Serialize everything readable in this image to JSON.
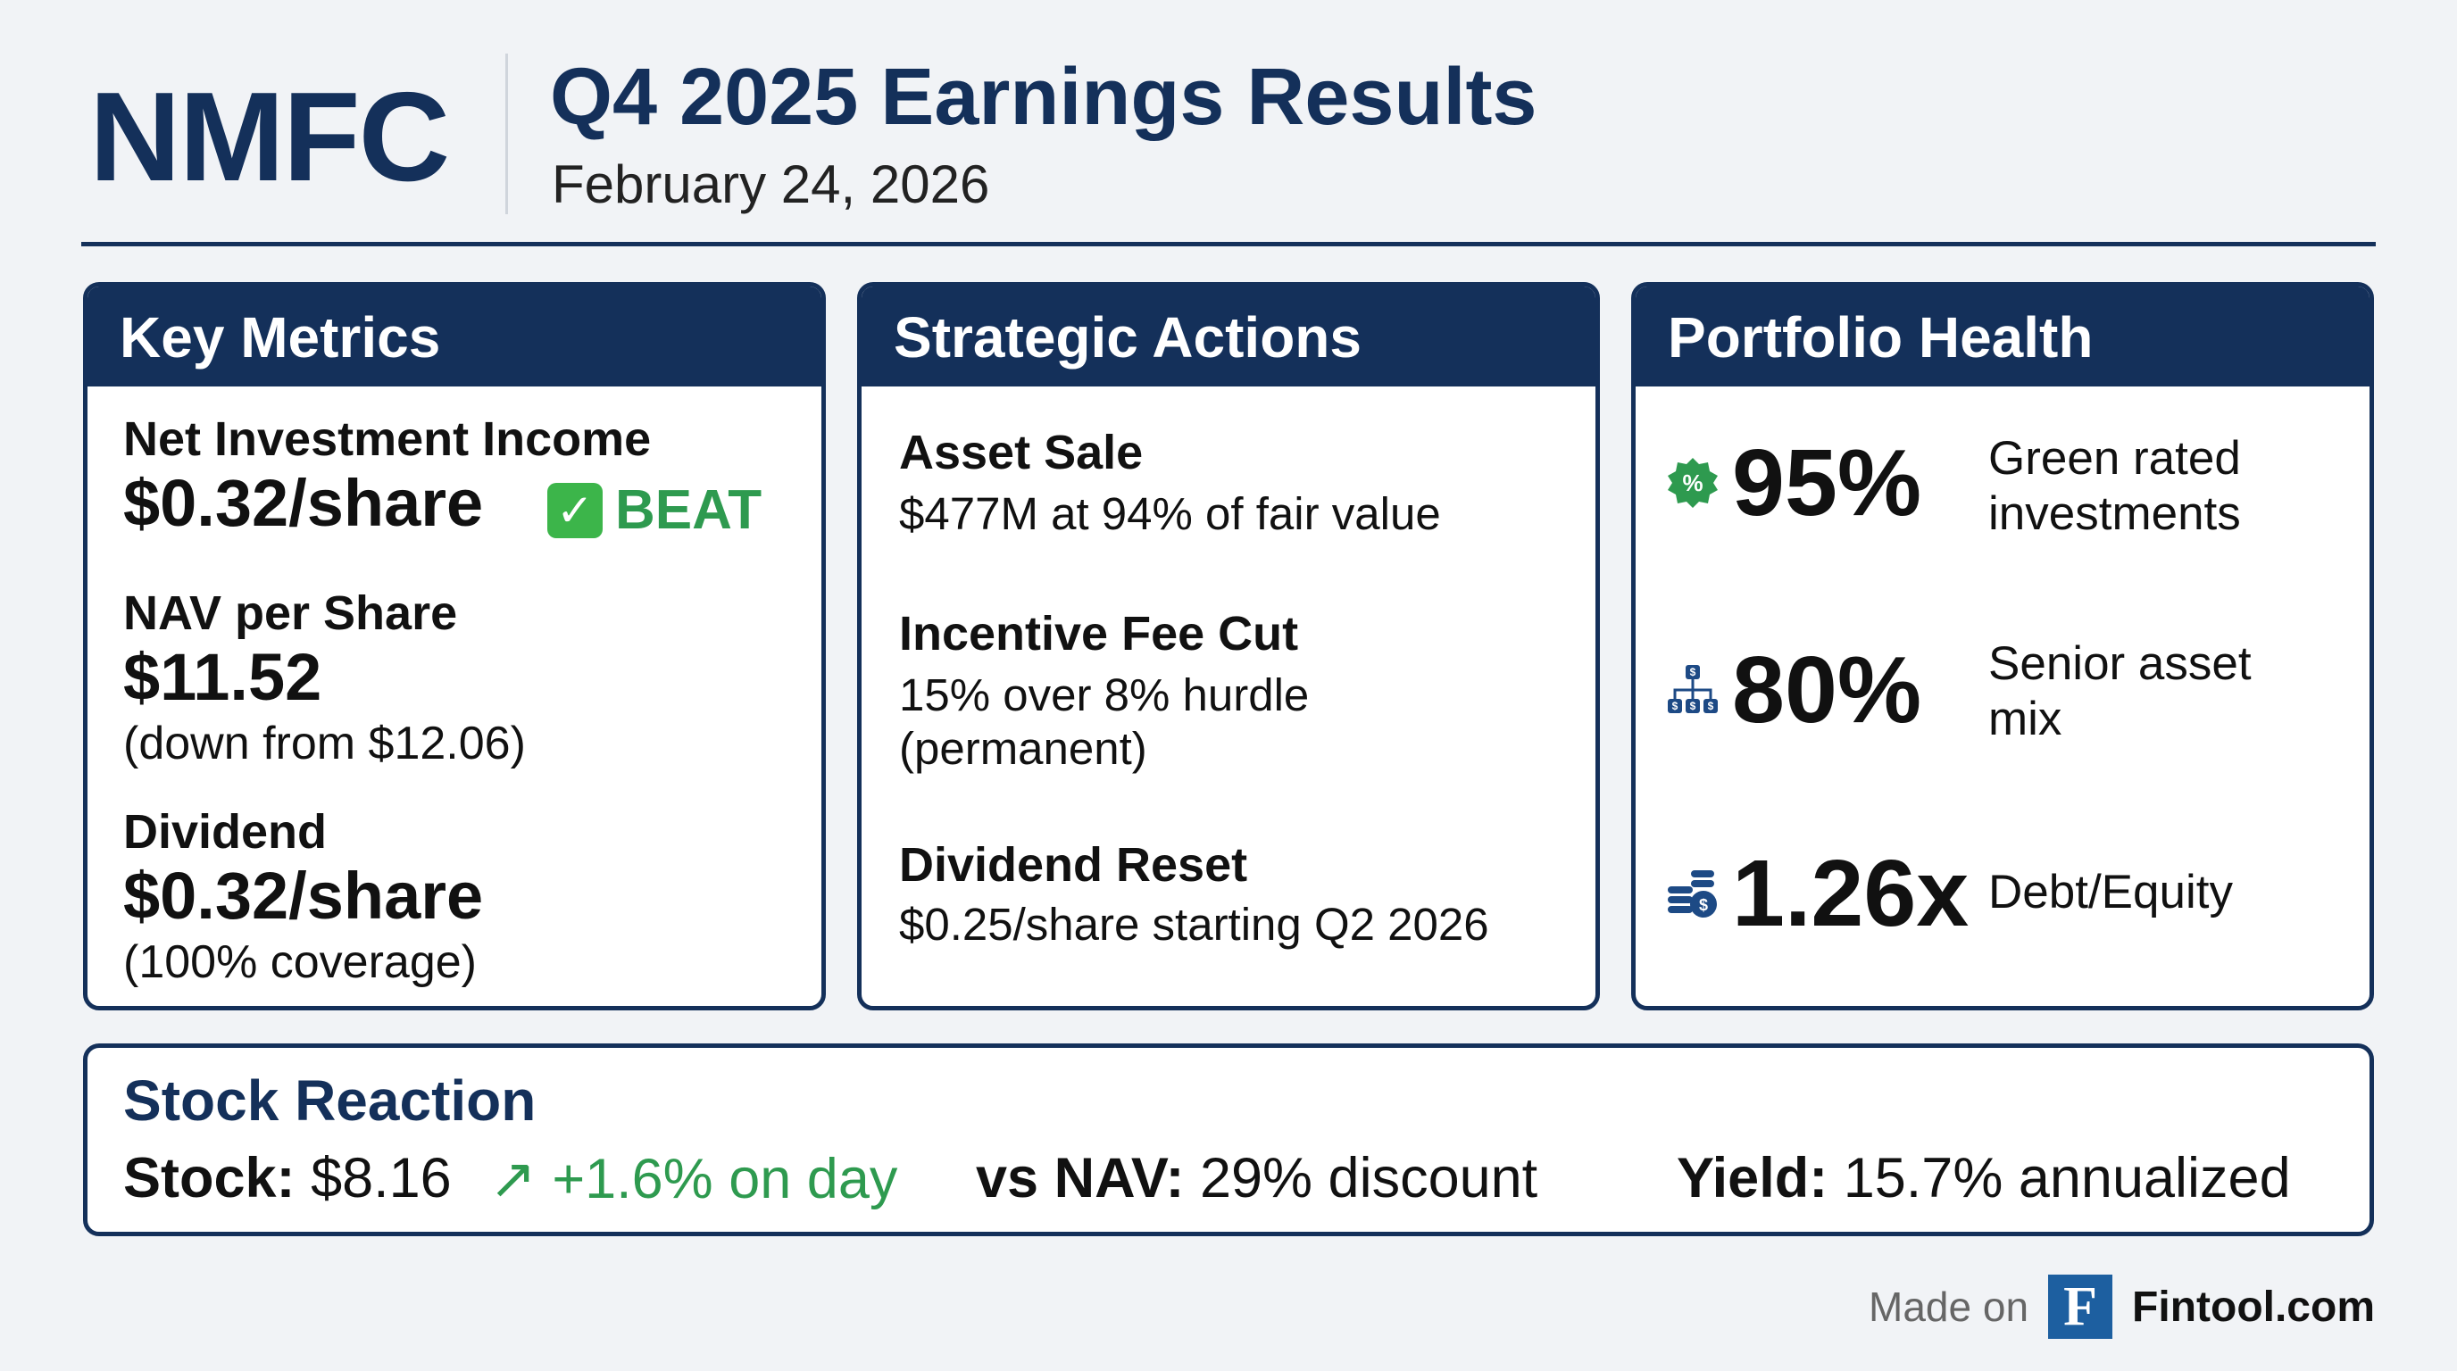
{
  "header": {
    "ticker": "NMFC",
    "title": "Q4 2025 Earnings Results",
    "date": "February 24, 2026"
  },
  "key_metrics": {
    "title": "Key Metrics",
    "nii_label": "Net Investment Income",
    "nii_value": "$0.32/share",
    "nii_badge": "BEAT",
    "nav_label": "NAV per Share",
    "nav_value": "$11.52",
    "nav_note": "(down from $12.06)",
    "div_label": "Dividend",
    "div_value": "$0.32/share",
    "div_note": "(100% coverage)"
  },
  "strategic_actions": {
    "title": "Strategic Actions",
    "items": [
      {
        "title": "Asset Sale",
        "lines": [
          "$477M at 94% of fair value"
        ]
      },
      {
        "title": "Incentive Fee Cut",
        "lines": [
          "15% over 8% hurdle",
          "(permanent)"
        ]
      },
      {
        "title": "Dividend Reset",
        "lines": [
          "$0.25/share starting Q2 2026"
        ]
      }
    ]
  },
  "portfolio_health": {
    "title": "Portfolio Health",
    "items": [
      {
        "icon": "percent-badge-icon",
        "value": "95%",
        "lines": [
          "Green rated",
          "investments"
        ]
      },
      {
        "icon": "hierarchy-dollar-icon",
        "value": "80%",
        "lines": [
          "Senior asset",
          "mix"
        ]
      },
      {
        "icon": "coin-stack-icon",
        "value": "1.26x",
        "lines": [
          "Debt/Equity"
        ]
      }
    ]
  },
  "stock_reaction": {
    "title": "Stock Reaction",
    "stock_label": "Stock:",
    "stock_value": "$8.16",
    "change": "+1.6% on day",
    "nav_label": "vs NAV:",
    "nav_value": "29% discount",
    "yield_label": "Yield:",
    "yield_value": "15.7% annualized"
  },
  "footer": {
    "made_on": "Made on",
    "logo_letter": "F",
    "brand": "Fintool.com"
  },
  "colors": {
    "navy": "#14305a",
    "green": "#2e9a4f",
    "logo_blue": "#1d5fa0"
  }
}
